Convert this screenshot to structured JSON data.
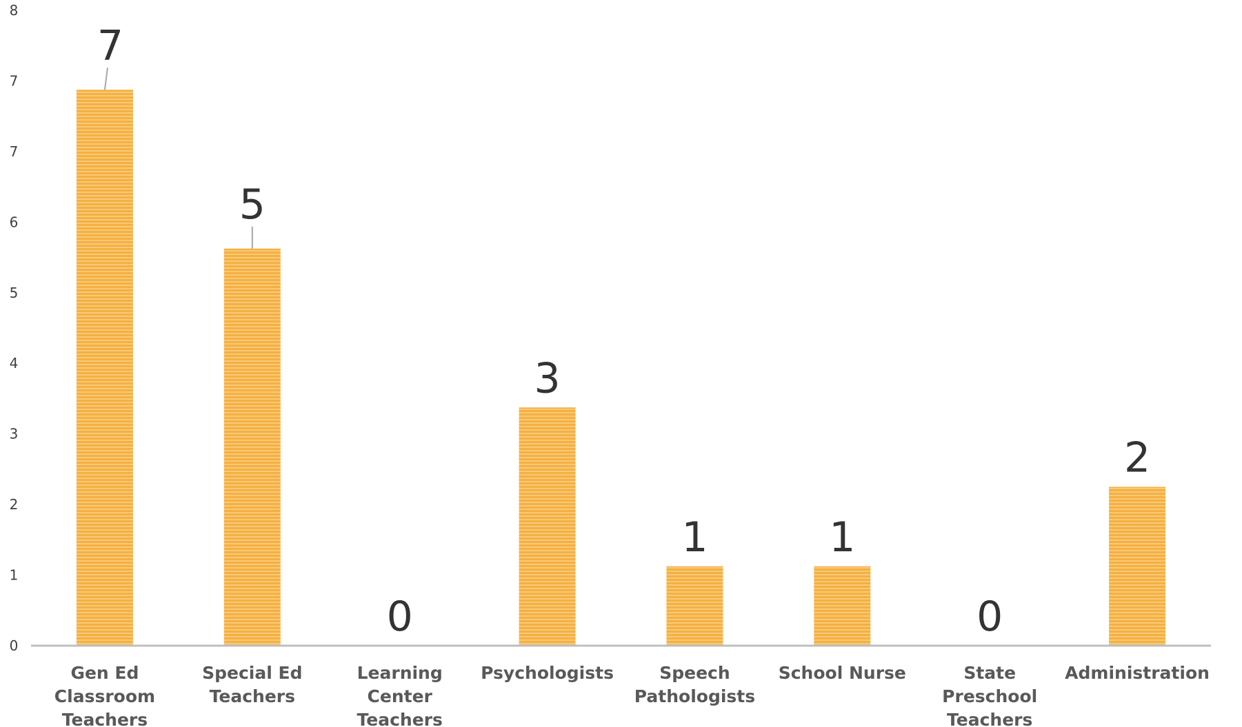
{
  "chart_data": {
    "type": "bar",
    "title": "",
    "xlabel": "",
    "ylabel": "",
    "categories": [
      "Gen Ed Classroom Teachers",
      "Special Ed Teachers",
      "Learning Center Teachers",
      "Psychologists",
      "Speech Pathologists",
      "School Nurse",
      "State Preschool Teachers",
      "Administration"
    ],
    "category_lines": [
      [
        "Gen Ed",
        "Classroom",
        "Teachers"
      ],
      [
        "Special Ed",
        "Teachers"
      ],
      [
        "Learning",
        "Center",
        "Teachers"
      ],
      [
        "Psychologists"
      ],
      [
        "Speech",
        "Pathologists"
      ],
      [
        "School Nurse"
      ],
      [
        "State",
        "Preschool",
        "Teachers"
      ],
      [
        "Administration"
      ]
    ],
    "values": [
      7,
      5,
      0,
      3,
      1,
      1,
      0,
      2
    ],
    "data_labels": [
      "7",
      "5",
      "0",
      "3",
      "1",
      "1",
      "0",
      "2"
    ],
    "ylim": [
      0,
      8
    ],
    "yticks": [
      "0",
      "1",
      "2",
      "3",
      "4",
      "5",
      "6",
      "7",
      "7",
      "8"
    ],
    "grid": false,
    "legend": "none",
    "colors": {
      "bar": "#F5B041",
      "bar_stripe": "#F8C978",
      "axis": "#BFBFBF",
      "leader": "#A6A6A6"
    }
  }
}
